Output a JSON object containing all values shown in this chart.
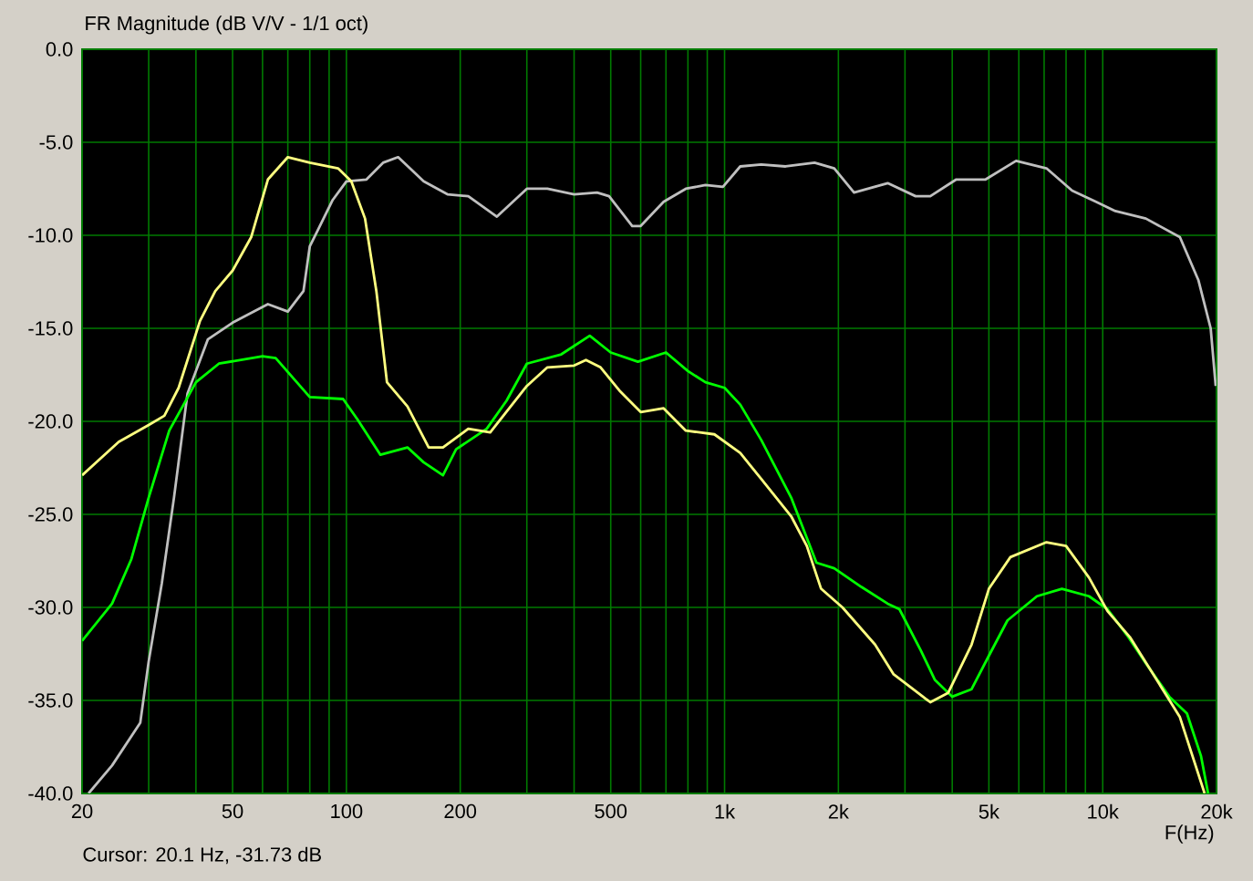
{
  "chart_data": {
    "type": "line",
    "title": "FR Magnitude (dB V/V - 1/1 oct)",
    "xlabel": "F(Hz)",
    "annotations": [
      "Cursor: 20.1 Hz, -31.73 dB"
    ],
    "log": "x",
    "grid": true,
    "xlim": [
      20,
      20000
    ],
    "ylim": [
      -40,
      0
    ],
    "xticks": [
      20,
      {
        "value": 30,
        "label": null
      },
      {
        "value": 40,
        "label": null
      },
      50,
      {
        "value": 60,
        "label": null
      },
      {
        "value": 70,
        "label": null
      },
      {
        "value": 80,
        "label": null
      },
      {
        "value": 90,
        "label": null
      },
      100,
      200,
      {
        "value": 300,
        "label": null
      },
      {
        "value": 400,
        "label": null
      },
      500,
      {
        "value": 600,
        "label": null
      },
      {
        "value": 700,
        "label": null
      },
      {
        "value": 800,
        "label": null
      },
      {
        "value": 900,
        "label": null
      },
      {
        "value": 1000,
        "label": "1k"
      },
      {
        "value": 2000,
        "label": "2k"
      },
      {
        "value": 3000,
        "label": null
      },
      {
        "value": 4000,
        "label": null
      },
      {
        "value": 5000,
        "label": "5k"
      },
      {
        "value": 6000,
        "label": null
      },
      {
        "value": 7000,
        "label": null
      },
      {
        "value": 8000,
        "label": null
      },
      {
        "value": 9000,
        "label": null
      },
      {
        "value": 10000,
        "label": "10k"
      },
      {
        "value": 20000,
        "label": "20k"
      }
    ],
    "yticks": [
      {
        "value": 0,
        "label": "0.0"
      },
      {
        "value": -5,
        "label": "-5.0"
      },
      {
        "value": -10,
        "label": "-10.0"
      },
      {
        "value": -15,
        "label": "-15.0"
      },
      {
        "value": -20,
        "label": "-20.0"
      },
      {
        "value": -25,
        "label": "-25.0"
      },
      {
        "value": -30,
        "label": "-30.0"
      },
      {
        "value": -35,
        "label": "-35.0"
      },
      {
        "value": -40,
        "label": "-40.0"
      }
    ],
    "series": [
      {
        "color": "#c0c0c0",
        "x": [
          20.8,
          24,
          28.5,
          30,
          32.5,
          35,
          38,
          43,
          50,
          62,
          70,
          77,
          80,
          92,
          100,
          113,
          125,
          137,
          160,
          185,
          210,
          250,
          300,
          340,
          400,
          460,
          495,
          570,
          600,
          690,
          790,
          890,
          990,
          1100,
          1250,
          1450,
          1730,
          1950,
          2200,
          2700,
          3200,
          3500,
          4100,
          4900,
          5900,
          7100,
          8300,
          9600,
          10800,
          13000,
          16000,
          17900,
          19300,
          19900
        ],
        "values": [
          -40,
          -38.5,
          -36.2,
          -32.9,
          -28.7,
          -24.1,
          -18.5,
          -15.6,
          -14.7,
          -13.7,
          -14.1,
          -13.0,
          -10.6,
          -8.1,
          -7.1,
          -7.0,
          -6.1,
          -5.8,
          -7.1,
          -7.8,
          -7.9,
          -9.0,
          -7.5,
          -7.5,
          -7.8,
          -7.7,
          -7.9,
          -9.5,
          -9.5,
          -8.2,
          -7.5,
          -7.3,
          -7.4,
          -6.3,
          -6.2,
          -6.3,
          -6.1,
          -6.4,
          -7.7,
          -7.2,
          -7.9,
          -7.9,
          -7.0,
          -7.0,
          -6.0,
          -6.4,
          -7.6,
          -8.2,
          -8.7,
          -9.1,
          -10.1,
          -12.4,
          -15.0,
          -18.1
        ]
      },
      {
        "color": "#00ff00",
        "x": [
          20,
          24,
          27,
          30,
          34,
          40,
          46,
          60,
          65,
          80,
          98,
          107,
          123,
          145,
          160,
          180,
          195,
          235,
          265,
          300,
          370,
          440,
          500,
          590,
          700,
          800,
          890,
          1000,
          1100,
          1250,
          1500,
          1750,
          1950,
          2300,
          2700,
          2900,
          3300,
          3600,
          4000,
          4500,
          5000,
          5600,
          6700,
          7800,
          9200,
          10300,
          11600,
          13000,
          15000,
          16700,
          18200,
          19000
        ],
        "values": [
          -31.8,
          -29.8,
          -27.4,
          -24.1,
          -20.5,
          -17.9,
          -16.9,
          -16.5,
          -16.6,
          -18.7,
          -18.8,
          -19.9,
          -21.8,
          -21.4,
          -22.2,
          -22.9,
          -21.5,
          -20.4,
          -18.9,
          -16.9,
          -16.4,
          -15.4,
          -16.3,
          -16.8,
          -16.3,
          -17.3,
          -17.9,
          -18.2,
          -19.1,
          -21.0,
          -24.1,
          -27.6,
          -27.9,
          -28.9,
          -29.8,
          -30.1,
          -32.3,
          -33.9,
          -34.8,
          -34.4,
          -32.6,
          -30.7,
          -29.4,
          -29.0,
          -29.4,
          -30.1,
          -31.5,
          -33.0,
          -34.8,
          -35.7,
          -38.0,
          -40
        ]
      },
      {
        "color": "#ffff80",
        "x": [
          20,
          25,
          30,
          33,
          36,
          41,
          45,
          50,
          56,
          62,
          70,
          80,
          95,
          103,
          112,
          120,
          128,
          145,
          165,
          180,
          210,
          240,
          300,
          340,
          400,
          430,
          470,
          530,
          600,
          690,
          790,
          940,
          1100,
          1250,
          1500,
          1650,
          1800,
          2050,
          2500,
          2800,
          3500,
          3900,
          4500,
          5000,
          5700,
          7100,
          8000,
          9200,
          10300,
          11800,
          13800,
          16000,
          18600
        ],
        "values": [
          -22.9,
          -21.1,
          -20.2,
          -19.7,
          -18.2,
          -14.6,
          -13.0,
          -11.9,
          -10.1,
          -7.0,
          -5.8,
          -6.1,
          -6.4,
          -7.1,
          -9.1,
          -13.0,
          -17.9,
          -19.2,
          -21.4,
          -21.4,
          -20.4,
          -20.6,
          -18.1,
          -17.1,
          -17.0,
          -16.7,
          -17.1,
          -18.4,
          -19.5,
          -19.3,
          -20.5,
          -20.7,
          -21.7,
          -23.1,
          -25.1,
          -26.7,
          -29.0,
          -30.0,
          -32.0,
          -33.6,
          -35.1,
          -34.6,
          -32.0,
          -29.0,
          -27.3,
          -26.5,
          -26.7,
          -28.4,
          -30.2,
          -31.6,
          -33.8,
          -35.9,
          -40
        ]
      }
    ]
  }
}
